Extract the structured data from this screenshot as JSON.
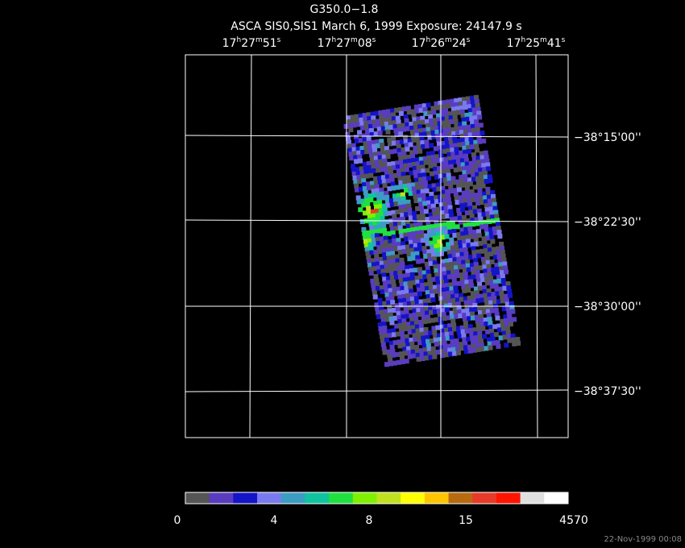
{
  "header": {
    "title": "G350.0−1.8",
    "subtitle": "ASCA SIS0,SIS1 March 6, 1999 Exposure: 24147.9 s"
  },
  "ra_labels": [
    [
      "17",
      "h",
      "27",
      "m",
      "51",
      "s"
    ],
    [
      "17",
      "h",
      "27",
      "m",
      "08",
      "s"
    ],
    [
      "17",
      "h",
      "26",
      "m",
      "24",
      "s"
    ],
    [
      "17",
      "h",
      "25",
      "m",
      "41",
      "s"
    ]
  ],
  "dec_labels": [
    "−38°15'00''",
    "−38°22'30''",
    "−38°30'00''",
    "−38°37'30''"
  ],
  "colorbar": {
    "colors": [
      "#555555",
      "#5a3cc0",
      "#1414c8",
      "#7a7af0",
      "#3c9cc4",
      "#10c4a0",
      "#20e040",
      "#80f000",
      "#c0e020",
      "#ffff00",
      "#ffc400",
      "#b86a10",
      "#e83a28",
      "#ff1400",
      "#e0e0e0",
      "#ffffff"
    ],
    "labels": [
      "0",
      "4",
      "8",
      "15",
      "4570"
    ]
  },
  "footer": {
    "timestamp": "22-Nov-1999 00:08"
  }
}
